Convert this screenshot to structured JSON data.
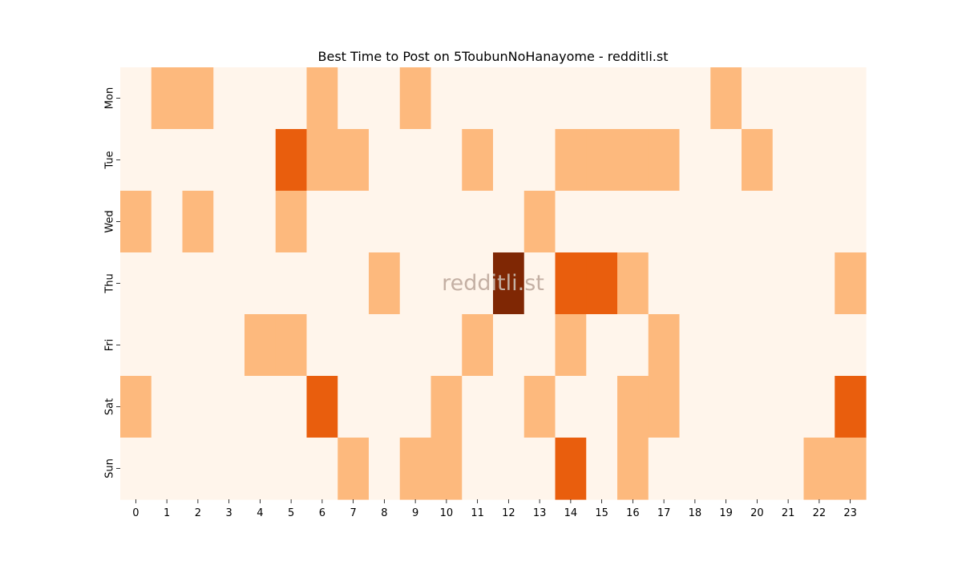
{
  "chart_data": {
    "type": "heatmap",
    "title": "Best Time to Post on 5ToubunNoHanayome - redditli.st",
    "x_categories": [
      "0",
      "1",
      "2",
      "3",
      "4",
      "5",
      "6",
      "7",
      "8",
      "9",
      "10",
      "11",
      "12",
      "13",
      "14",
      "15",
      "16",
      "17",
      "18",
      "19",
      "20",
      "21",
      "22",
      "23"
    ],
    "y_categories": [
      "Mon",
      "Tue",
      "Wed",
      "Thu",
      "Fri",
      "Sat",
      "Sun"
    ],
    "values": [
      [
        0,
        1,
        1,
        0,
        0,
        0,
        1,
        0,
        0,
        1,
        0,
        0,
        0,
        0,
        0,
        0,
        0,
        0,
        0,
        1,
        0,
        0,
        0,
        0
      ],
      [
        0,
        0,
        0,
        0,
        0,
        2,
        1,
        1,
        0,
        0,
        0,
        1,
        0,
        0,
        1,
        1,
        1,
        1,
        0,
        0,
        1,
        0,
        0,
        0
      ],
      [
        1,
        0,
        1,
        0,
        0,
        1,
        0,
        0,
        0,
        0,
        0,
        0,
        0,
        1,
        0,
        0,
        0,
        0,
        0,
        0,
        0,
        0,
        0,
        0
      ],
      [
        0,
        0,
        0,
        0,
        0,
        0,
        0,
        0,
        1,
        0,
        0,
        0,
        3,
        0,
        2,
        2,
        1,
        0,
        0,
        0,
        0,
        0,
        0,
        1
      ],
      [
        0,
        0,
        0,
        0,
        1,
        1,
        0,
        0,
        0,
        0,
        0,
        1,
        0,
        0,
        1,
        0,
        0,
        1,
        0,
        0,
        0,
        0,
        0,
        0
      ],
      [
        1,
        0,
        0,
        0,
        0,
        0,
        2,
        0,
        0,
        0,
        1,
        0,
        0,
        1,
        0,
        0,
        1,
        1,
        0,
        0,
        0,
        0,
        0,
        2
      ],
      [
        0,
        0,
        0,
        0,
        0,
        0,
        0,
        1,
        0,
        1,
        1,
        0,
        0,
        0,
        2,
        0,
        1,
        0,
        0,
        0,
        0,
        0,
        1,
        1
      ]
    ],
    "color_scale": [
      "#fff5eb",
      "#fdb97d",
      "#e95e0d",
      "#7f2704"
    ],
    "colormap": "Oranges",
    "grid": false,
    "legend": "none",
    "watermark": "redditli.st",
    "watermark_color": "#c4b0a4"
  }
}
